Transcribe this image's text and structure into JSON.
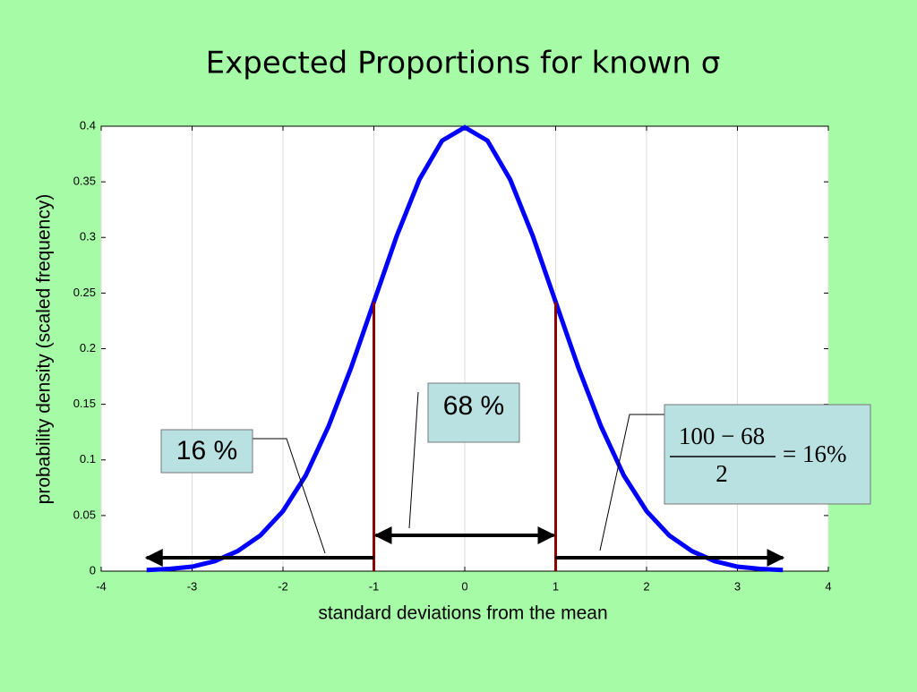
{
  "chart_data": {
    "type": "line",
    "title": "Expected Proportions for known σ",
    "xlabel": "standard deviations from the mean",
    "ylabel": "probability density (scaled frequency)",
    "x": [
      -3.5,
      -3.25,
      -3,
      -2.75,
      -2.5,
      -2.25,
      -2,
      -1.75,
      -1.5,
      -1.25,
      -1,
      -0.75,
      -0.5,
      -0.25,
      0,
      0.25,
      0.5,
      0.75,
      1,
      1.25,
      1.5,
      1.75,
      2,
      2.25,
      2.5,
      2.75,
      3,
      3.25,
      3.5
    ],
    "values": [
      0.001,
      0.002,
      0.004,
      0.009,
      0.018,
      0.032,
      0.054,
      0.086,
      0.13,
      0.183,
      0.242,
      0.301,
      0.352,
      0.387,
      0.399,
      0.387,
      0.352,
      0.301,
      0.242,
      0.183,
      0.13,
      0.086,
      0.054,
      0.032,
      0.018,
      0.009,
      0.004,
      0.002,
      0.001
    ],
    "color": "#0000ff",
    "vlines": [
      -1,
      1
    ],
    "vline_color": "#8b0000",
    "xlim": [
      -4,
      4
    ],
    "ylim": [
      0,
      0.4
    ],
    "xticks": [
      -4,
      -3,
      -2,
      -1,
      0,
      1,
      2,
      3,
      4
    ],
    "yticks": [
      0,
      0.05,
      0.1,
      0.15,
      0.2,
      0.25,
      0.3,
      0.35,
      0.4
    ],
    "grid": "x",
    "annotations": {
      "left": "16 %",
      "center": "68 %",
      "formula": {
        "numerator": "100 − 68",
        "denominator": "2",
        "result": "= 16%"
      }
    }
  }
}
